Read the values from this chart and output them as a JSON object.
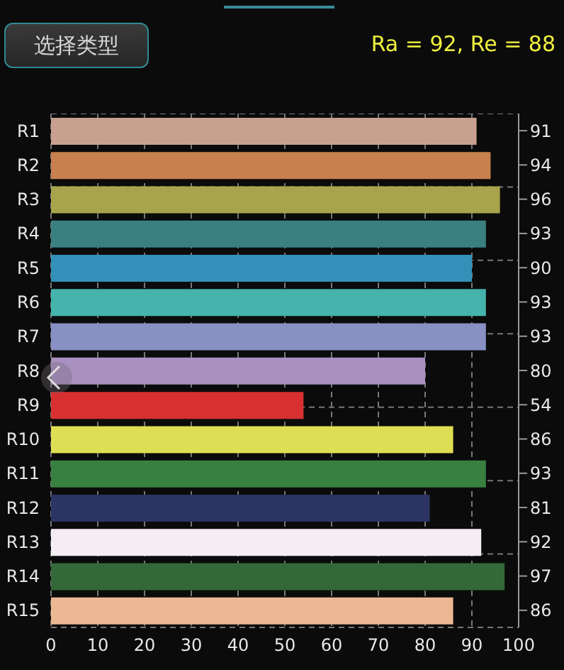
{
  "chart_data": {
    "type": "bar",
    "orientation": "horizontal",
    "title": "Ra = 92, Re = 88",
    "annotations": [
      "选择类型"
    ],
    "categories": [
      "R1",
      "R2",
      "R3",
      "R4",
      "R5",
      "R6",
      "R7",
      "R8",
      "R9",
      "R10",
      "R11",
      "R12",
      "R13",
      "R14",
      "R15"
    ],
    "values": [
      91,
      94,
      96,
      93,
      90,
      93,
      93,
      80,
      54,
      86,
      93,
      81,
      92,
      97,
      86
    ],
    "colors": [
      "#c8a090",
      "#c8804e",
      "#a8a44c",
      "#3a8080",
      "#3490b8",
      "#44b4ac",
      "#8890c4",
      "#a890c0",
      "#d83030",
      "#dede54",
      "#388040",
      "#2c3464",
      "#f4eef4",
      "#346838",
      "#ecb894"
    ],
    "xlim": [
      0,
      100
    ],
    "xticks": [
      0,
      10,
      20,
      30,
      40,
      50,
      60,
      70,
      80,
      90,
      100
    ],
    "grid": true,
    "data_labels": true
  }
}
